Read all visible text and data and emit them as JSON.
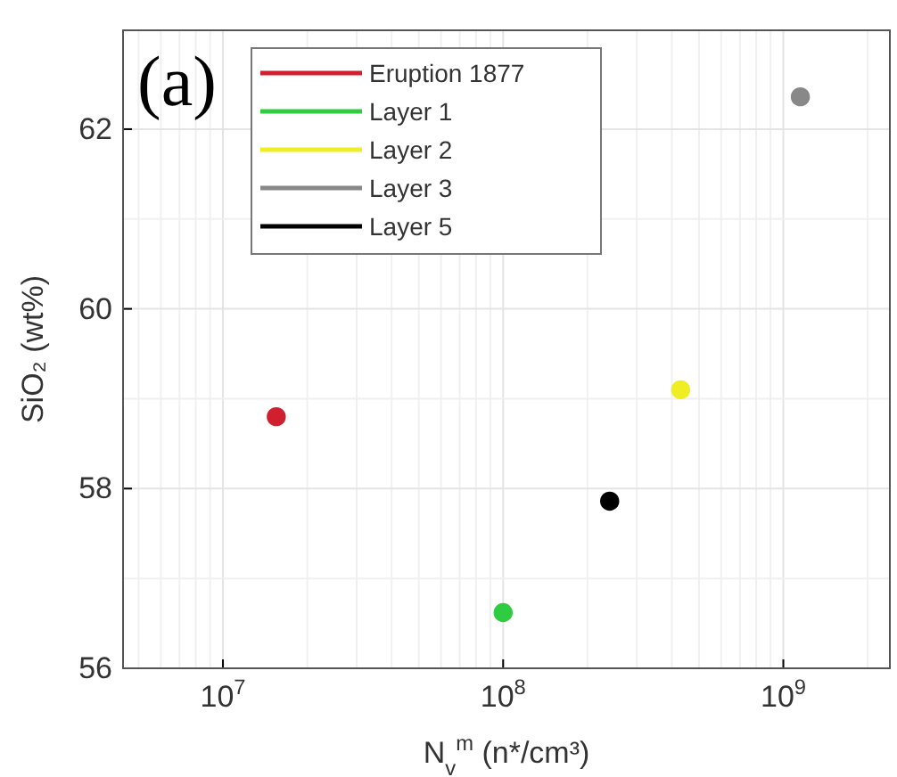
{
  "chart_data": {
    "type": "scatter",
    "xlabel": "N$_{v}$$^{m}$ (n*/cm³)",
    "ylabel": "SiO₂ (wt%)",
    "annotations": [
      "(a)"
    ],
    "series": [
      {
        "name": "Eruption 1877",
        "color": "#d01f2e",
        "x": [
          15500000
        ],
        "values": [
          58.8
        ]
      },
      {
        "name": "Layer 1",
        "color": "#2ecc40",
        "x": [
          100000000
        ],
        "values": [
          56.62
        ]
      },
      {
        "name": "Layer 2",
        "color": "#eeee22",
        "x": [
          430000000
        ],
        "values": [
          59.1
        ]
      },
      {
        "name": "Layer 3",
        "color": "#888888",
        "x": [
          1150000000
        ],
        "values": [
          62.36
        ]
      },
      {
        "name": "Layer 5",
        "color": "#000000",
        "x": [
          240000000
        ],
        "values": [
          57.86
        ]
      }
    ],
    "log": "x",
    "xlim": [
      4400000,
      2400000000
    ],
    "ylim": [
      56,
      63.1
    ],
    "xticks": [
      {
        "value": 10000000,
        "label": "10$^{7}$"
      },
      {
        "value": 100000000,
        "label": "10$^{8}$"
      },
      {
        "value": 1000000000,
        "label": "10$^{9}$"
      }
    ],
    "yticks": [
      56,
      58,
      60,
      62
    ],
    "grid": true,
    "legend": "top left",
    "marker": "circle"
  }
}
